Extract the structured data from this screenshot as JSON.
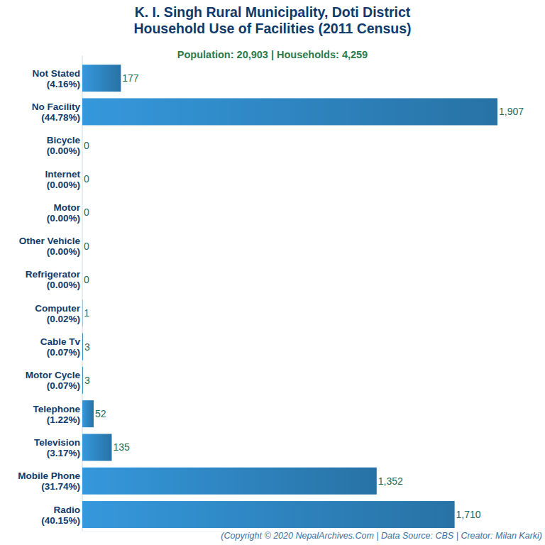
{
  "chart_data": {
    "type": "bar",
    "title": "K. I. Singh Rural Municipality, Doti District\nHousehold Use of Facilities (2011 Census)",
    "subtitle": "Population: 20,903 | Households: 4,259",
    "caption": "(Copyright © 2020 NepalArchives.Com | Data Source: CBS | Creator: Milan Karki)",
    "orientation": "horizontal",
    "categories": [
      "Not Stated\n(4.16%)",
      "No Facility\n(44.78%)",
      "Bicycle\n(0.00%)",
      "Internet\n(0.00%)",
      "Motor\n(0.00%)",
      "Other Vehicle\n(0.00%)",
      "Refrigerator\n(0.00%)",
      "Computer\n(0.02%)",
      "Cable Tv\n(0.07%)",
      "Motor Cycle\n(0.07%)",
      "Telephone\n(1.22%)",
      "Television\n(3.17%)",
      "Mobile Phone\n(31.74%)",
      "Radio\n(40.15%)"
    ],
    "values": [
      177,
      1907,
      0,
      0,
      0,
      0,
      0,
      1,
      3,
      3,
      52,
      135,
      1352,
      1710
    ],
    "value_labels": [
      "177",
      "1,907",
      "0",
      "0",
      "0",
      "0",
      "0",
      "1",
      "3",
      "3",
      "52",
      "135",
      "1,352",
      "1,710"
    ],
    "color": "#3598dc",
    "xlim": [
      0,
      1907
    ],
    "data_labels": true,
    "tick_labels": "y",
    "grid": false
  }
}
